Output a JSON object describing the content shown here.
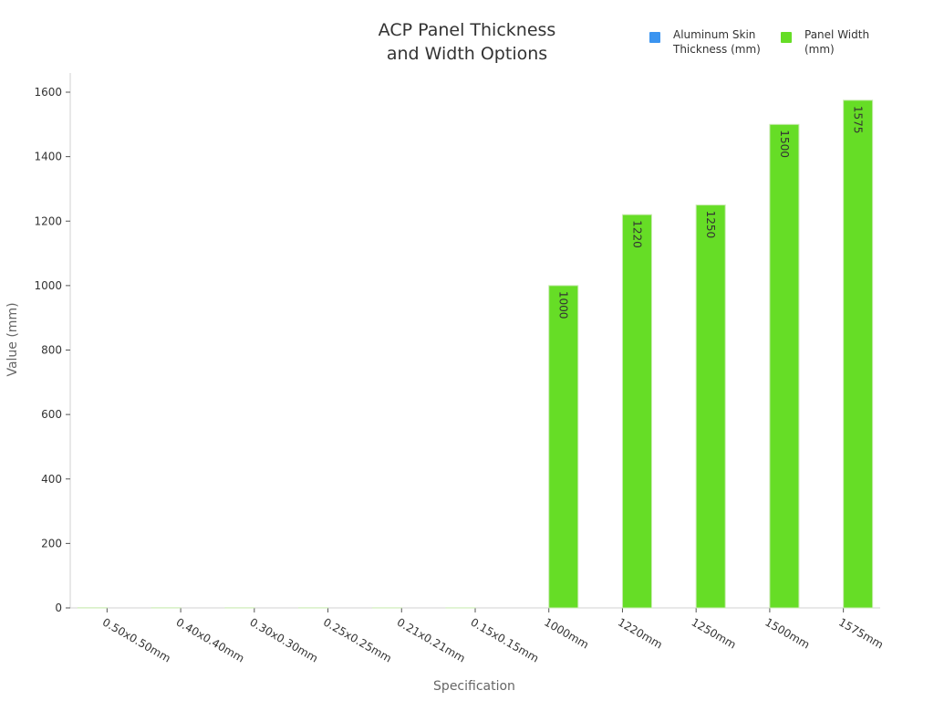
{
  "chart_data": {
    "type": "bar",
    "title": "ACP Panel Thickness and Width Options",
    "title_lines": [
      "ACP Panel Thickness",
      "and Width Options"
    ],
    "xlabel": "Specification",
    "ylabel": "Value (mm)",
    "ylim": [
      0,
      1650
    ],
    "yticks": [
      0,
      200,
      400,
      600,
      800,
      1000,
      1200,
      1400,
      1600
    ],
    "categories": [
      "0.50x0.50mm",
      "0.40x0.40mm",
      "0.30x0.30mm",
      "0.25x0.25mm",
      "0.21x0.21mm",
      "0.15x0.15mm",
      "1000mm",
      "1220mm",
      "1250mm",
      "1500mm",
      "1575mm"
    ],
    "series": [
      {
        "name": "Aluminum Skin Thickness (mm)",
        "color": "#3b94f0",
        "values": [
          0.5,
          0.4,
          0.3,
          0.25,
          0.21,
          0.15,
          null,
          null,
          null,
          null,
          null
        ]
      },
      {
        "name": "Panel Width (mm)",
        "color": "#66dd26",
        "values": [
          null,
          null,
          null,
          null,
          null,
          null,
          1000,
          1220,
          1250,
          1500,
          1575
        ]
      }
    ],
    "legend_position": "top-right",
    "grid": false
  },
  "legend": {
    "items": [
      {
        "label_line1": "Aluminum Skin",
        "label_line2": "Thickness (mm)",
        "color": "#3b94f0"
      },
      {
        "label_line1": "Panel Width",
        "label_line2": "(mm)",
        "color": "#66dd26"
      }
    ]
  }
}
